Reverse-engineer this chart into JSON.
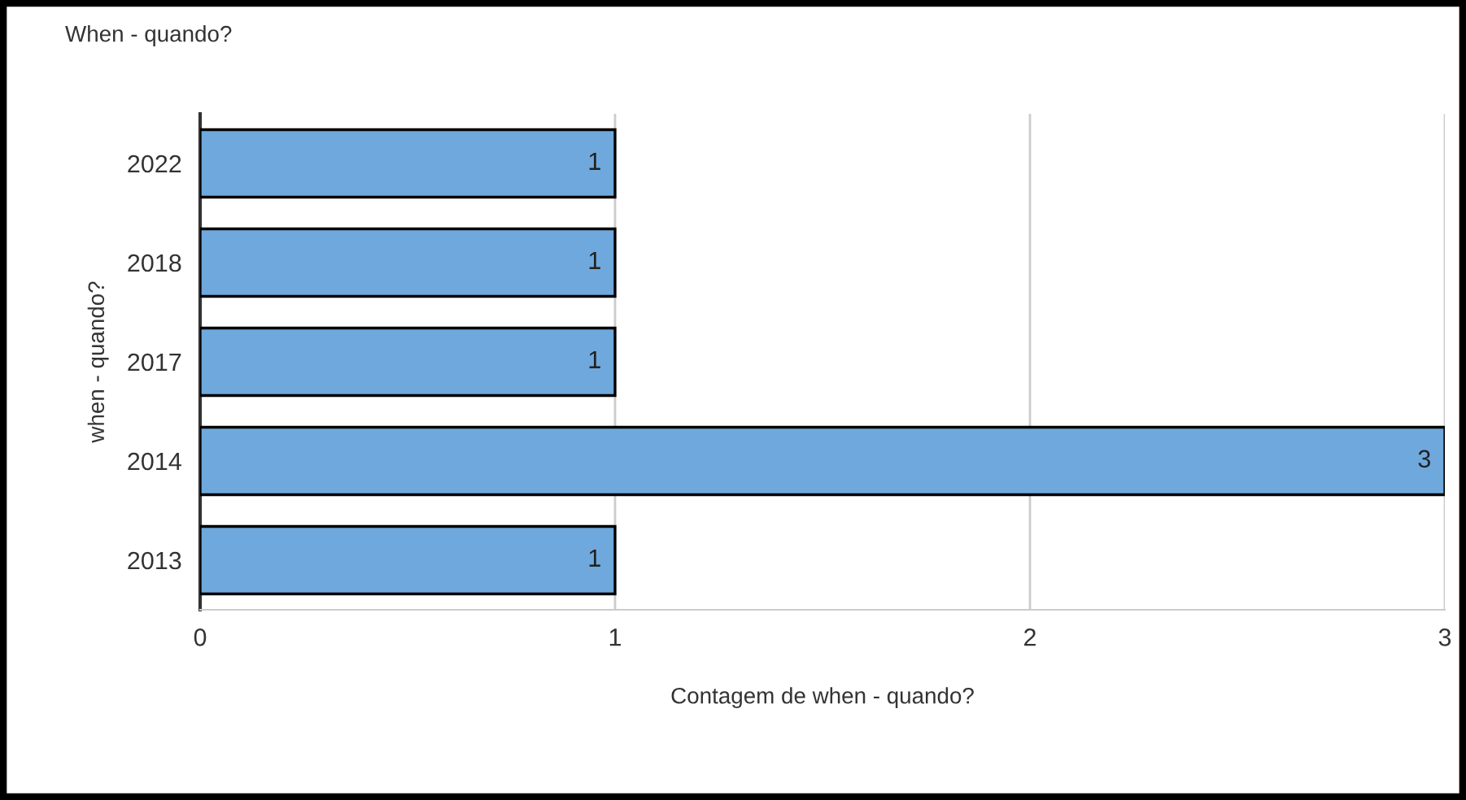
{
  "chart_data": {
    "type": "bar",
    "orientation": "horizontal",
    "title": "When - quando?",
    "xlabel": "Contagem de when - quando?",
    "ylabel": "when - quando?",
    "categories": [
      "2022",
      "2018",
      "2017",
      "2014",
      "2013"
    ],
    "values": [
      1,
      1,
      1,
      3,
      1
    ],
    "color": "#6fa8dc",
    "xlim": [
      0,
      3
    ],
    "xticks": [
      0,
      1,
      2,
      3
    ],
    "grid": "x",
    "data_labels": true,
    "legend": false
  }
}
